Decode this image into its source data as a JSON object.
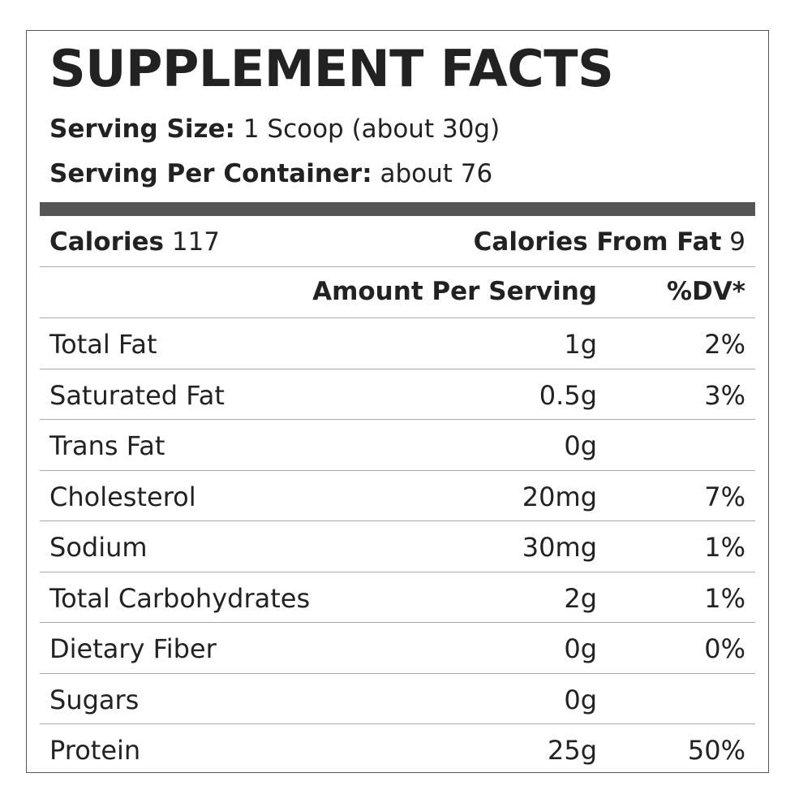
{
  "label": {
    "title": "SUPPLEMENT FACTS",
    "serving_size_label": "Serving Size:",
    "serving_size_value": "1 Scoop (about 30g)",
    "servings_label": "Serving Per Container:",
    "servings_value": "about 76",
    "calories_label": "Calories",
    "calories_value": "117",
    "calories_fat_label": "Calories From Fat",
    "calories_fat_value": "9",
    "amount_header": "Amount Per Serving",
    "dv_header": "%DV*",
    "bar_color": "#555555"
  },
  "nutrients": [
    {
      "name": "Total Fat",
      "amount": "1g",
      "dv": "2%"
    },
    {
      "name": "Saturated Fat",
      "amount": "0.5g",
      "dv": "3%"
    },
    {
      "name": "Trans Fat",
      "amount": "0g",
      "dv": ""
    },
    {
      "name": "Cholesterol",
      "amount": "20mg",
      "dv": "7%"
    },
    {
      "name": "Sodium",
      "amount": "30mg",
      "dv": "1%"
    },
    {
      "name": "Total Carbohydrates",
      "amount": "2g",
      "dv": "1%"
    },
    {
      "name": "Dietary Fiber",
      "amount": "0g",
      "dv": "0%"
    },
    {
      "name": "Sugars",
      "amount": "0g",
      "dv": ""
    },
    {
      "name": "Protein",
      "amount": "25g",
      "dv": "50%"
    }
  ]
}
